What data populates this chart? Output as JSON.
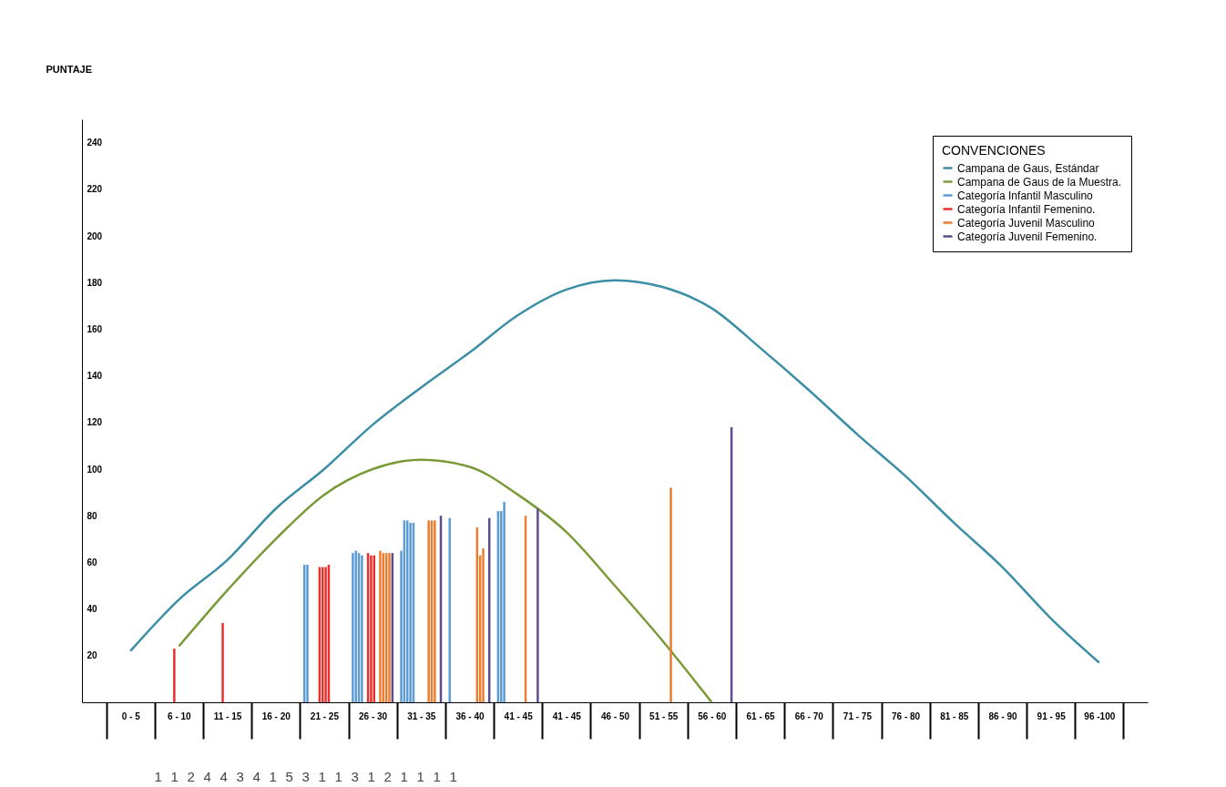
{
  "chart_data": {
    "type": "line",
    "ylabel": "PUNTAJE",
    "legend_title": "CONVENCIONES",
    "legend": "top right",
    "categories": [
      "0 - 5",
      "6 - 10",
      "11 - 15",
      "16 - 20",
      "21 - 25",
      "26 - 30",
      "31 - 35",
      "36 - 40",
      "41 - 45",
      "41 - 45",
      "46 - 50",
      "51 - 55",
      "56 - 60",
      "61 - 65",
      "66 - 70",
      "71 - 75",
      "76 - 80",
      "81 - 85",
      "86 - 90",
      "91 - 95",
      "96 -100"
    ],
    "ylim": [
      0,
      250
    ],
    "yticks": [
      20,
      40,
      60,
      80,
      100,
      120,
      140,
      160,
      180,
      200,
      220,
      240
    ],
    "annotations": [
      "1",
      "1",
      "2",
      "4",
      "4",
      "3",
      "4",
      "1",
      "5",
      "3",
      "1",
      "1",
      "3",
      "1",
      "2",
      "1",
      "1",
      "1",
      "1"
    ],
    "series": [
      {
        "name": "Campana de Gaus, Estándar",
        "color": "#3b8ea5",
        "values": [
          22,
          44,
          61,
          83,
          100,
          119,
          135,
          150,
          166,
          177,
          181,
          178,
          169,
          152,
          134,
          115,
          97,
          77,
          58,
          36,
          17
        ]
      },
      {
        "name": "Campana de Gaus de la Muestra.",
        "color": "#7a9a3a",
        "values": [
          null,
          24,
          48,
          70,
          89,
          100,
          104,
          101,
          89,
          73,
          50,
          26,
          0,
          null,
          null,
          null,
          null,
          null,
          null,
          null,
          null
        ]
      },
      {
        "name": "Categoría Infantil Masculino",
        "color": "#5b9bd5",
        "type": "bar",
        "values": [
          null,
          null,
          null,
          null,
          59,
          64,
          65,
          79,
          82,
          null,
          null,
          null,
          null,
          null,
          null,
          null,
          null,
          null,
          null,
          null,
          null
        ]
      },
      {
        "color": "#5b9bd5",
        "type": "bar",
        "values": [
          null,
          null,
          null,
          null,
          59,
          65,
          78,
          null,
          82,
          null,
          null,
          null,
          null,
          null,
          null,
          null,
          null,
          null,
          null,
          null,
          null
        ]
      },
      {
        "color": "#5b9bd5",
        "type": "bar",
        "values": [
          null,
          null,
          null,
          null,
          null,
          64,
          78,
          null,
          86,
          null,
          null,
          null,
          null,
          null,
          null,
          null,
          null,
          null,
          null,
          null,
          null
        ]
      },
      {
        "color": "#5b9bd5",
        "type": "bar",
        "values": [
          null,
          null,
          null,
          null,
          null,
          63,
          77,
          null,
          null,
          null,
          null,
          null,
          null,
          null,
          null,
          null,
          null,
          null,
          null,
          null,
          null
        ]
      },
      {
        "color": "#5b9bd5",
        "type": "bar",
        "values": [
          null,
          null,
          null,
          null,
          null,
          null,
          77,
          null,
          null,
          null,
          null,
          null,
          null,
          null,
          null,
          null,
          null,
          null,
          null,
          null,
          null
        ]
      },
      {
        "name": "Categoría Infantil Femenino.",
        "color": "#e8312f",
        "type": "bar",
        "values": [
          null,
          23,
          34,
          null,
          58,
          64,
          null,
          null,
          null,
          null,
          null,
          null,
          null,
          null,
          null,
          null,
          null,
          null,
          null,
          null,
          null
        ]
      },
      {
        "color": "#e8312f",
        "type": "bar",
        "values": [
          null,
          null,
          null,
          null,
          58,
          63,
          null,
          null,
          null,
          null,
          null,
          null,
          null,
          null,
          null,
          null,
          null,
          null,
          null,
          null,
          null
        ]
      },
      {
        "color": "#e8312f",
        "type": "bar",
        "values": [
          null,
          null,
          null,
          null,
          58,
          63,
          null,
          null,
          null,
          null,
          null,
          null,
          null,
          null,
          null,
          null,
          null,
          null,
          null,
          null,
          null
        ]
      },
      {
        "color": "#e8312f",
        "type": "bar",
        "values": [
          null,
          null,
          null,
          null,
          59,
          null,
          null,
          null,
          null,
          null,
          null,
          null,
          null,
          null,
          null,
          null,
          null,
          null,
          null,
          null,
          null
        ]
      },
      {
        "name": "Categoría Juvenil Masculino",
        "color": "#ed7d31",
        "type": "bar",
        "values": [
          null,
          null,
          null,
          null,
          null,
          65,
          78,
          75,
          80,
          null,
          null,
          92,
          null,
          null,
          null,
          null,
          null,
          null,
          null,
          null,
          null
        ]
      },
      {
        "color": "#ed7d31",
        "type": "bar",
        "values": [
          null,
          null,
          null,
          null,
          null,
          64,
          78,
          63,
          null,
          null,
          null,
          null,
          null,
          null,
          null,
          null,
          null,
          null,
          null,
          null,
          null
        ]
      },
      {
        "color": "#ed7d31",
        "type": "bar",
        "values": [
          null,
          null,
          null,
          null,
          null,
          64,
          78,
          66,
          null,
          null,
          null,
          null,
          null,
          null,
          null,
          null,
          null,
          null,
          null,
          null,
          null
        ]
      },
      {
        "color": "#ed7d31",
        "type": "bar",
        "values": [
          null,
          null,
          null,
          null,
          null,
          64,
          null,
          null,
          null,
          null,
          null,
          null,
          null,
          null,
          null,
          null,
          null,
          null,
          null,
          null,
          null
        ]
      },
      {
        "name": "Categoría Juvenil Femenino.",
        "color": "#5e4b8b",
        "type": "bar",
        "values": [
          null,
          null,
          null,
          null,
          null,
          64,
          80,
          79,
          83,
          null,
          null,
          null,
          118,
          null,
          null,
          null,
          null,
          null,
          null,
          null,
          null
        ]
      }
    ]
  }
}
